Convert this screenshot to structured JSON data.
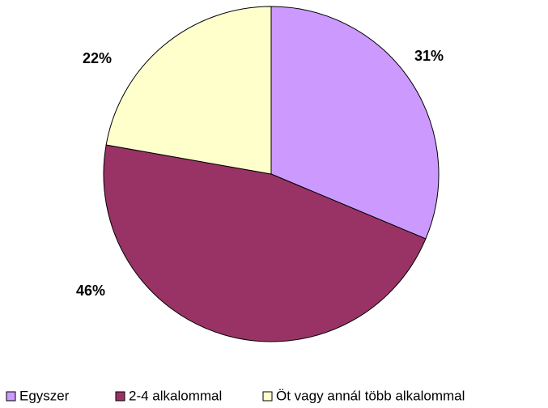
{
  "chart_data": {
    "type": "pie",
    "categories": [
      "Egyszer",
      "2-4 alkalommal",
      "Öt vagy annál több alkalommal"
    ],
    "values": [
      31,
      46,
      22
    ],
    "value_labels": [
      "31%",
      "46%",
      "22%"
    ],
    "colors": [
      "#cc99ff",
      "#993366",
      "#ffffcc"
    ],
    "legend": "bottom"
  }
}
